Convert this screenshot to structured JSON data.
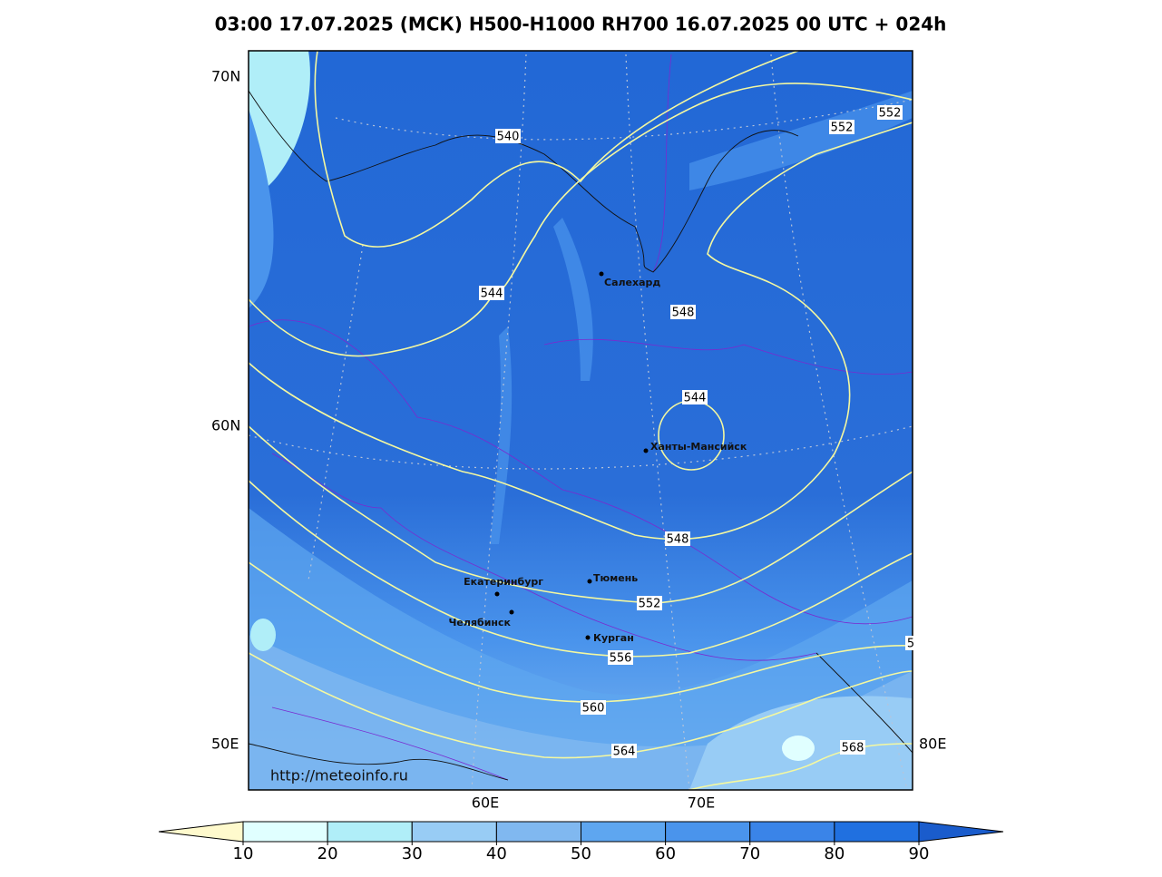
{
  "title": "03:00 17.07.2025 (МСК) H500-H1000 RH700 16.07.2025 00 UTC + 024h",
  "grid_labels": [
    "70N",
    "60N",
    "50E",
    "60E",
    "70E",
    "80E"
  ],
  "contour_labels": [
    "540",
    "544",
    "548",
    "544",
    "548",
    "552",
    "556",
    "560",
    "564",
    "568",
    "552",
    "552",
    "5"
  ],
  "cities": [
    "Салехард",
    "Ханты-Мансийск",
    "Тюмень",
    "Екатеринбург",
    "Челябинск",
    "Курган"
  ],
  "url": "http://meteoinfo.ru",
  "colorbar": {
    "ticks": [
      10,
      20,
      30,
      40,
      50,
      60,
      70,
      80,
      90
    ],
    "colors": [
      "#fffacd",
      "#e0ffff",
      "#b0eef8",
      "#98ccf5",
      "#80b8f0",
      "#5ea6f0",
      "#4a94ec",
      "#3a84e8",
      "#2070e0",
      "#1a5ccc"
    ]
  }
}
